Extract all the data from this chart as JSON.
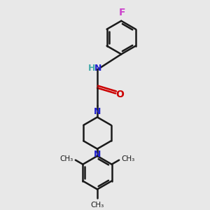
{
  "bg_color": "#e8e8e8",
  "bond_color": "#1a1a1a",
  "N_color": "#2020cc",
  "O_color": "#cc0000",
  "F_color": "#cc44cc",
  "H_color": "#44aaaa",
  "line_width": 1.8,
  "font_size": 9,
  "figsize": [
    3.0,
    3.0
  ],
  "dpi": 100,
  "xlim": [
    0,
    10
  ],
  "ylim": [
    0,
    10
  ]
}
